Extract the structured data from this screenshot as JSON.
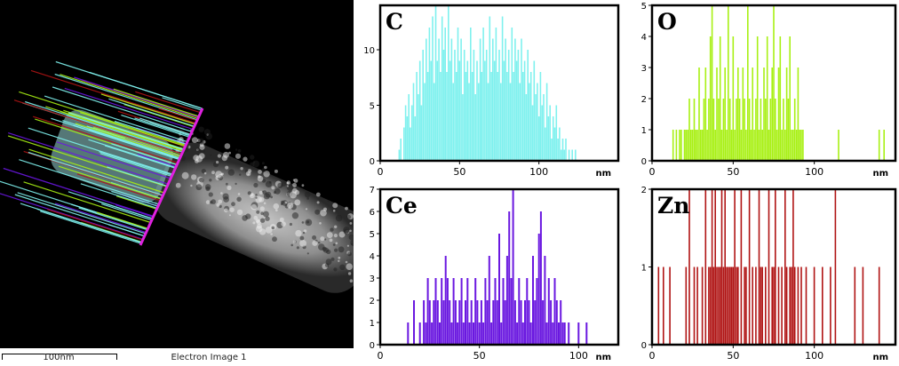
{
  "micrograph": {
    "scale_label": "100nm",
    "image_label": "Electron Image 1"
  },
  "chart_data": [
    {
      "type": "bar",
      "element": "C",
      "color": "#7ff1ee",
      "xlim": [
        0,
        150
      ],
      "ylim": [
        0,
        14
      ],
      "xticks": [
        0,
        50,
        100
      ],
      "yticks": [
        0,
        5,
        10
      ],
      "xunit": "nm",
      "x": [
        12,
        13,
        14,
        15,
        16,
        17,
        18,
        19,
        20,
        21,
        22,
        23,
        24,
        25,
        26,
        27,
        28,
        29,
        30,
        31,
        32,
        33,
        34,
        35,
        36,
        37,
        38,
        39,
        40,
        41,
        42,
        43,
        44,
        45,
        46,
        47,
        48,
        49,
        50,
        51,
        52,
        53,
        54,
        55,
        56,
        57,
        58,
        59,
        60,
        61,
        62,
        63,
        64,
        65,
        66,
        67,
        68,
        69,
        70,
        71,
        72,
        73,
        74,
        75,
        76,
        77,
        78,
        79,
        80,
        81,
        82,
        83,
        84,
        85,
        86,
        87,
        88,
        89,
        90,
        91,
        92,
        93,
        94,
        95,
        96,
        97,
        98,
        99,
        100,
        101,
        102,
        103,
        104,
        105,
        106,
        107,
        108,
        109,
        110,
        111,
        112,
        113,
        114,
        115,
        116,
        117,
        118,
        119,
        120,
        121,
        122,
        123,
        124,
        125,
        126
      ],
      "y": [
        1,
        2,
        0,
        3,
        5,
        4,
        6,
        3,
        5,
        7,
        4,
        8,
        6,
        9,
        5,
        10,
        7,
        11,
        8,
        12,
        9,
        13,
        7,
        14,
        9,
        11,
        8,
        13,
        10,
        12,
        8,
        14,
        9,
        11,
        7,
        10,
        8,
        12,
        9,
        11,
        6,
        10,
        8,
        9,
        7,
        12,
        8,
        10,
        6,
        9,
        7,
        11,
        8,
        12,
        9,
        10,
        7,
        13,
        8,
        11,
        9,
        12,
        8,
        10,
        7,
        13,
        9,
        11,
        8,
        10,
        7,
        12,
        8,
        11,
        9,
        10,
        7,
        11,
        8,
        9,
        6,
        10,
        7,
        8,
        5,
        9,
        6,
        7,
        4,
        8,
        5,
        6,
        3,
        7,
        4,
        5,
        2,
        4,
        3,
        5,
        2,
        3,
        1,
        2,
        1,
        2,
        0,
        1,
        0,
        1,
        0,
        1,
        0,
        0,
        0
      ]
    },
    {
      "type": "bar",
      "element": "O",
      "color": "#a8f014",
      "xlim": [
        0,
        150
      ],
      "ylim": [
        0,
        5
      ],
      "xticks": [
        0,
        50,
        100
      ],
      "yticks": [
        0,
        1,
        2,
        3,
        4,
        5
      ],
      "xunit": "nm",
      "x": [
        13,
        15,
        17,
        18,
        20,
        21,
        22,
        23,
        24,
        25,
        26,
        27,
        28,
        29,
        30,
        31,
        32,
        33,
        34,
        35,
        36,
        37,
        38,
        39,
        40,
        41,
        42,
        43,
        44,
        45,
        46,
        47,
        48,
        49,
        50,
        51,
        52,
        53,
        54,
        55,
        56,
        57,
        58,
        59,
        60,
        61,
        62,
        63,
        64,
        65,
        66,
        67,
        68,
        69,
        70,
        71,
        72,
        73,
        74,
        75,
        76,
        77,
        78,
        79,
        80,
        81,
        82,
        83,
        84,
        85,
        86,
        87,
        88,
        89,
        90,
        91,
        92,
        93,
        115,
        140,
        143
      ],
      "y": [
        1,
        1,
        1,
        1,
        1,
        1,
        1,
        2,
        1,
        1,
        2,
        1,
        1,
        3,
        1,
        1,
        2,
        3,
        1,
        2,
        4,
        5,
        2,
        1,
        3,
        2,
        4,
        1,
        2,
        3,
        1,
        5,
        2,
        1,
        4,
        1,
        2,
        3,
        2,
        1,
        3,
        2,
        1,
        5,
        2,
        1,
        3,
        1,
        2,
        4,
        1,
        2,
        1,
        3,
        2,
        4,
        1,
        2,
        3,
        5,
        2,
        1,
        3,
        4,
        1,
        2,
        1,
        3,
        2,
        4,
        1,
        1,
        2,
        1,
        3,
        1,
        1,
        1,
        1,
        1,
        1
      ]
    },
    {
      "type": "bar",
      "element": "Ce",
      "color": "#6a18e0",
      "xlim": [
        0,
        120
      ],
      "ylim": [
        0,
        7
      ],
      "xticks": [
        0,
        50,
        100
      ],
      "yticks": [
        0,
        1,
        2,
        3,
        4,
        5,
        6,
        7
      ],
      "xunit": "nm",
      "x": [
        14,
        17,
        20,
        22,
        23,
        24,
        25,
        26,
        27,
        28,
        29,
        30,
        31,
        32,
        33,
        34,
        35,
        36,
        37,
        38,
        39,
        40,
        41,
        42,
        43,
        44,
        45,
        46,
        47,
        48,
        49,
        50,
        51,
        52,
        53,
        54,
        55,
        56,
        57,
        58,
        59,
        60,
        61,
        62,
        63,
        64,
        65,
        66,
        67,
        68,
        69,
        70,
        71,
        72,
        73,
        74,
        75,
        76,
        77,
        78,
        79,
        80,
        81,
        82,
        83,
        84,
        85,
        86,
        87,
        88,
        89,
        90,
        91,
        92,
        93,
        95,
        100,
        104
      ],
      "y": [
        1,
        2,
        1,
        2,
        1,
        3,
        2,
        1,
        2,
        3,
        2,
        1,
        3,
        2,
        4,
        3,
        2,
        1,
        3,
        2,
        1,
        2,
        3,
        1,
        2,
        3,
        1,
        2,
        1,
        3,
        2,
        1,
        2,
        1,
        3,
        2,
        4,
        1,
        2,
        3,
        2,
        5,
        1,
        3,
        2,
        4,
        6,
        3,
        7,
        2,
        1,
        3,
        2,
        1,
        2,
        3,
        2,
        1,
        4,
        2,
        3,
        5,
        6,
        2,
        4,
        1,
        3,
        2,
        1,
        3,
        2,
        1,
        2,
        1,
        1,
        1,
        1,
        1
      ]
    },
    {
      "type": "bar",
      "element": "Zn",
      "color": "#b01414",
      "xlim": [
        0,
        150
      ],
      "ylim": [
        0,
        2
      ],
      "xticks": [
        0,
        50,
        100
      ],
      "yticks": [
        0,
        1,
        2
      ],
      "xunit": "nm",
      "x": [
        4,
        7,
        11,
        21,
        23,
        26,
        28,
        31,
        33,
        35,
        36,
        37,
        38,
        39,
        40,
        41,
        42,
        43,
        44,
        45,
        46,
        47,
        48,
        49,
        50,
        51,
        52,
        53,
        55,
        57,
        58,
        60,
        62,
        64,
        66,
        67,
        68,
        70,
        72,
        74,
        75,
        76,
        78,
        80,
        82,
        83,
        85,
        86,
        87,
        88,
        90,
        92,
        95,
        100,
        105,
        110,
        113,
        125,
        130,
        140
      ],
      "y": [
        1,
        1,
        1,
        1,
        2,
        1,
        1,
        1,
        2,
        1,
        1,
        2,
        1,
        2,
        1,
        1,
        1,
        2,
        1,
        2,
        1,
        1,
        1,
        1,
        1,
        2,
        1,
        1,
        2,
        1,
        1,
        2,
        1,
        1,
        2,
        1,
        1,
        1,
        2,
        1,
        1,
        2,
        1,
        1,
        2,
        1,
        1,
        1,
        2,
        1,
        1,
        1,
        1,
        1,
        1,
        1,
        2,
        1,
        1,
        1
      ]
    }
  ]
}
